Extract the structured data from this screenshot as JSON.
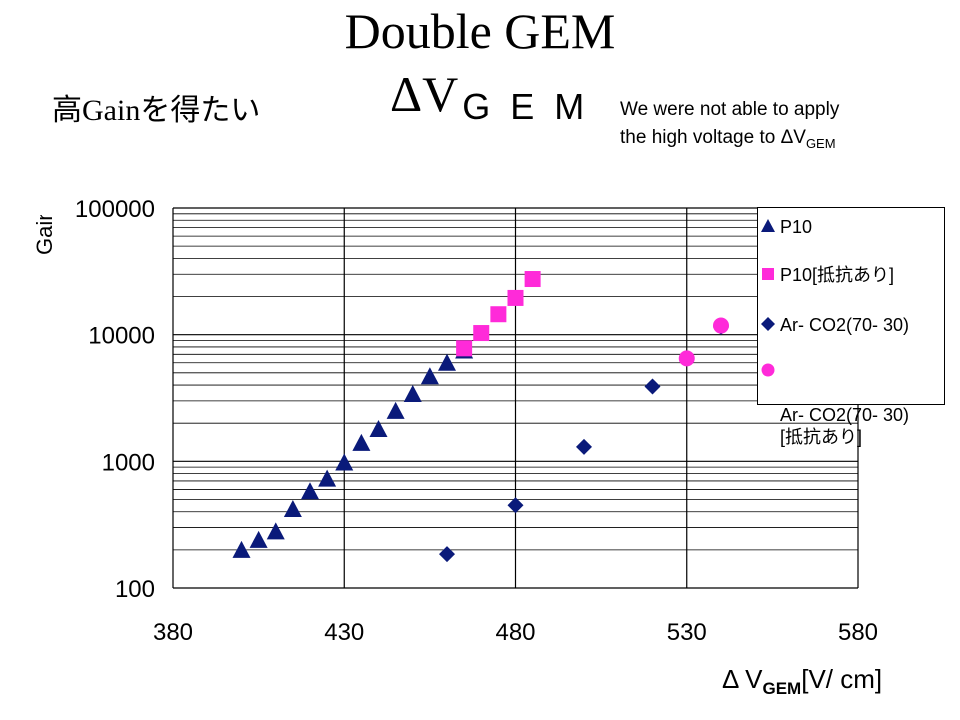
{
  "title": "Double GEM",
  "heading_delta": "ΔV",
  "heading_sub": "G E M",
  "goal_text_prefix": "高",
  "goal_text_gain": "Gain",
  "goal_text_suffix": "を得たい",
  "note_line1": "We were not able to apply",
  "note_line2": "the high voltage to ΔV",
  "note_sub": "GEM",
  "colors": {
    "navy": "#0a1a7a",
    "magenta": "#ff2ad9",
    "grid": "#000000"
  },
  "chart_data": {
    "type": "scatter",
    "yscale": "log",
    "xlim": [
      380,
      580
    ],
    "ylim": [
      100,
      100000
    ],
    "xticks": [
      "380",
      "430",
      "480",
      "530",
      "580"
    ],
    "yticks": [
      "100",
      "1000",
      "10000",
      "100000"
    ],
    "ylabel": "Gain",
    "xlabel_prefix": "Δ V",
    "xlabel_sub": "GEM",
    "xlabel_suffix": "[V/ cm]",
    "legend_position": "top-right",
    "series": [
      {
        "name": "P10",
        "marker": "triangle",
        "color": "#0a1a7a",
        "x": [
          400,
          405,
          410,
          415,
          420,
          425,
          430,
          435,
          440,
          445,
          450,
          455,
          460,
          465
        ],
        "y": [
          200,
          240,
          280,
          420,
          580,
          730,
          980,
          1400,
          1800,
          2500,
          3400,
          4700,
          6000,
          7500
        ]
      },
      {
        "name": "P10[抵抗あり]",
        "marker": "square",
        "color": "#ff2ad9",
        "x": [
          465,
          470,
          475,
          480,
          485
        ],
        "y": [
          7800,
          10300,
          14500,
          19500,
          27500
        ]
      },
      {
        "name": "Ar- CO2(70- 30)",
        "marker": "diamond",
        "color": "#0a1a7a",
        "x": [
          460,
          480,
          500,
          520,
          540
        ],
        "y": [
          185,
          450,
          1300,
          3900,
          11500
        ]
      },
      {
        "name": "Ar- CO2(70- 30)\n[抵抗あり]",
        "marker": "circle",
        "color": "#ff2ad9",
        "x": [
          530,
          540
        ],
        "y": [
          6500,
          11800
        ]
      }
    ]
  }
}
